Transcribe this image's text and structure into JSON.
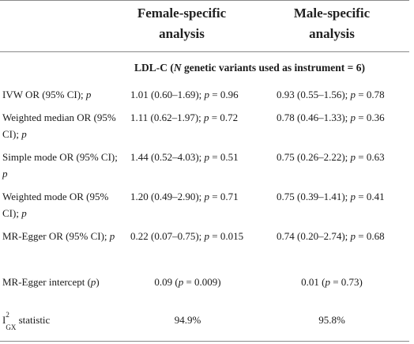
{
  "header": {
    "female_line1": "Female-specific",
    "female_line2": "analysis",
    "male_line1": "Male-specific",
    "male_line2": "analysis"
  },
  "subheader": {
    "prefix": "LDL-C (",
    "n_italic": "N",
    "suffix": " genetic variants used as instrument = 6)"
  },
  "rows": [
    {
      "label_text": "IVW OR (95% CI); ",
      "label_p": "p",
      "female_ci": "1.01 (0.60–1.69); ",
      "female_p": "p",
      "female_pval": " = 0.96",
      "male_ci": "0.93 (0.55–1.56); ",
      "male_p": "p",
      "male_pval": " = 0.78"
    },
    {
      "label_text": "Weighted median OR (95% CI); ",
      "label_p": "p",
      "female_ci": "1.11 (0.62–1.97); ",
      "female_p": "p",
      "female_pval": " = 0.72",
      "male_ci": "0.78 (0.46–1.33); ",
      "male_p": "p",
      "male_pval": " = 0.36"
    },
    {
      "label_text": "Simple mode OR (95% CI); ",
      "label_p": "p",
      "female_ci": "1.44 (0.52–4.03); ",
      "female_p": "p",
      "female_pval": " = 0.51",
      "male_ci": "0.75 (0.26–2.22); ",
      "male_p": "p",
      "male_pval": " = 0.63"
    },
    {
      "label_text": "Weighted mode OR (95% CI); ",
      "label_p": "p",
      "female_ci": "1.20 (0.49–2.90); ",
      "female_p": "p",
      "female_pval": " = 0.71",
      "male_ci": "0.75 (0.39–1.41); ",
      "male_p": "p",
      "male_pval": " = 0.41"
    },
    {
      "label_text": "MR-Egger OR (95% CI); ",
      "label_p": "p",
      "female_ci": "0.22 (0.07–0.75); ",
      "female_p": "p",
      "female_pval": " = 0.015",
      "male_ci": "0.74 (0.20–2.74); ",
      "male_p": "p",
      "male_pval": " = 0.68"
    }
  ],
  "intercept": {
    "label_text": "MR-Egger intercept (",
    "label_p": "p",
    "label_close": ")",
    "female_val": "0.09 (",
    "female_p": "p",
    "female_rest": " = 0.009)",
    "male_val": "0.01 (",
    "male_p": "p",
    "male_rest": " = 0.73)"
  },
  "igx": {
    "base": "I",
    "sup": "2",
    "sub": "GX",
    "label_rest": " statistic",
    "female": "94.9%",
    "male": "95.8%"
  }
}
